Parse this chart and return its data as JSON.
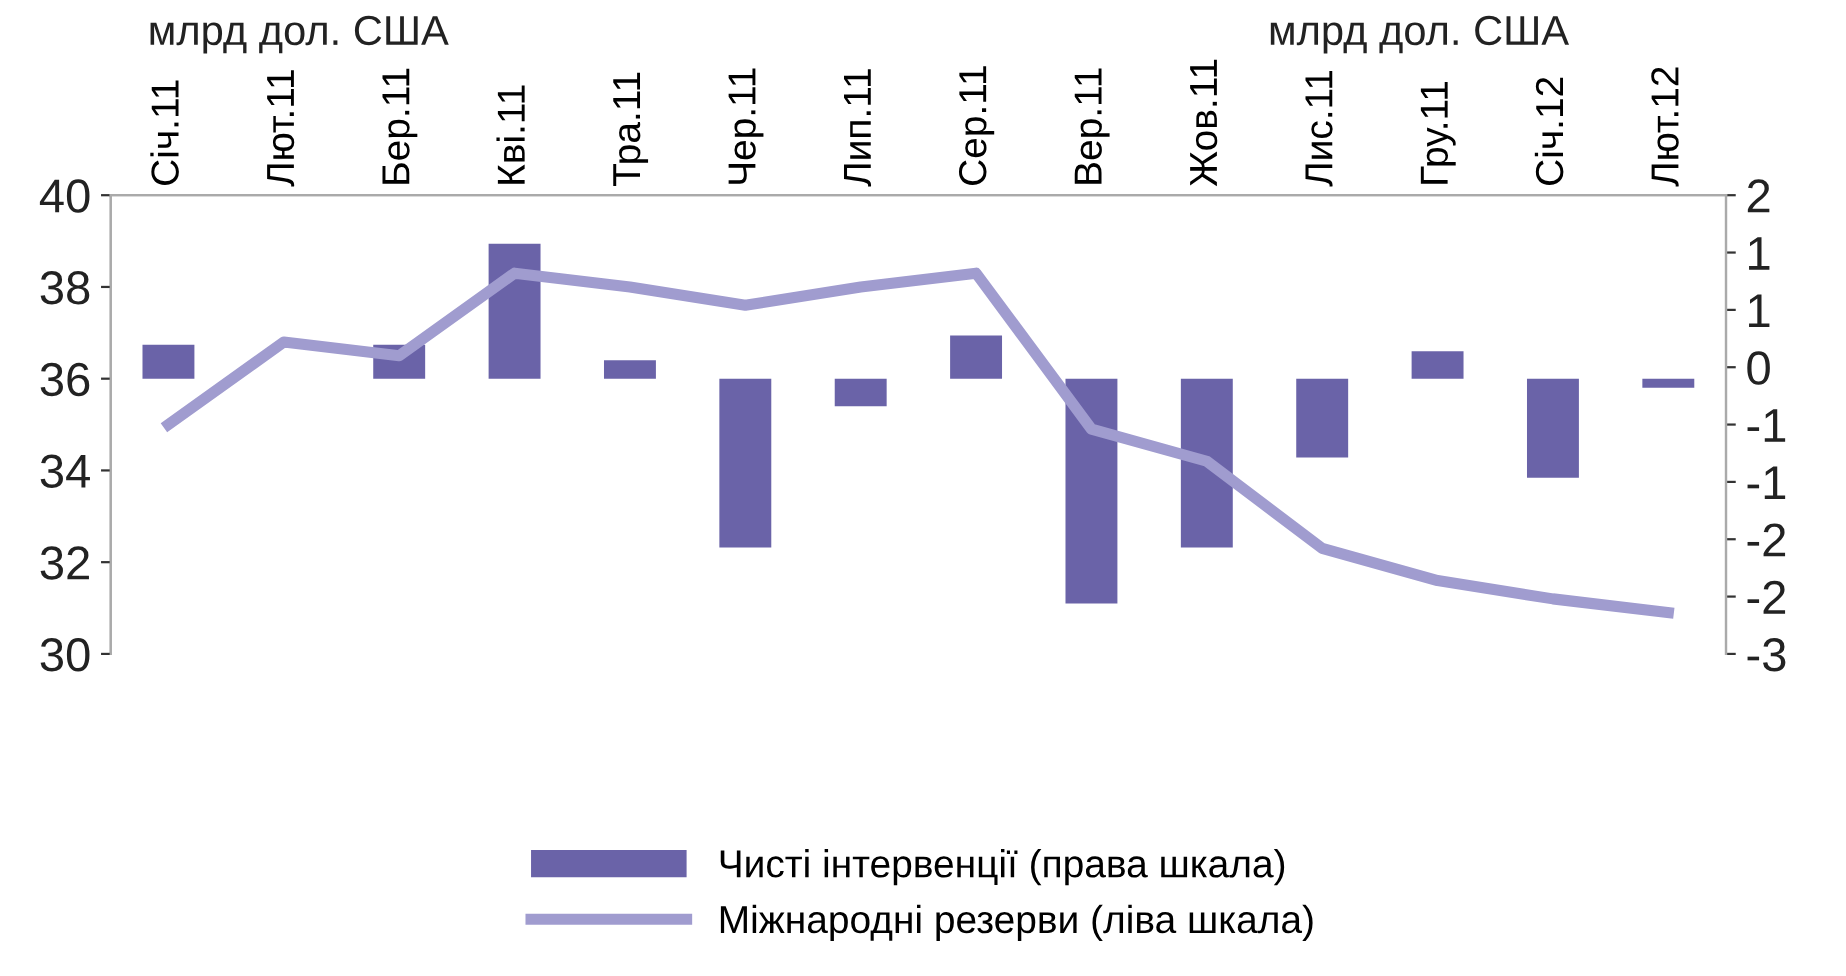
{
  "chart_data": {
    "type": "bar",
    "annotations": [
      "млрд дол. США",
      "млрд дол. США"
    ],
    "categories": [
      "Січ.11",
      "Лют.11",
      "Бер.11",
      "Кві.11",
      "Тра.11",
      "Чер.11",
      "Лип.11",
      "Сер.11",
      "Вер.11",
      "Жов.11",
      "Лис.11",
      "Гру.11",
      "Січ.12",
      "Лют.12"
    ],
    "series": [
      {
        "name": "Чисті інтервенції (права шкала)",
        "axis": "y2",
        "color": "#6a63a8",
        "values": [
          0.37,
          0.0,
          0.37,
          1.47,
          0.2,
          -1.84,
          -0.3,
          0.47,
          -2.45,
          -1.84,
          -0.86,
          0.3,
          -1.08,
          -0.1
        ]
      },
      {
        "name": "Міжнародні резерви (ліва шкала)",
        "type": "line",
        "color": "#a09ccf",
        "values": [
          35.0,
          36.8,
          36.5,
          38.3,
          38.0,
          37.6,
          38.0,
          38.3,
          34.9,
          34.2,
          32.3,
          31.6,
          31.2,
          30.9
        ]
      }
    ],
    "ylim": [
      30,
      40
    ],
    "yticks": [
      30,
      32,
      34,
      36,
      38,
      40
    ],
    "y2lim": [
      -3,
      2
    ],
    "y2ticks": [
      {
        "value": -3,
        "label": "-3"
      },
      {
        "value": -2.375,
        "label": "-2"
      },
      {
        "value": -1.75,
        "label": "-2"
      },
      {
        "value": -1.125,
        "label": "-1"
      },
      {
        "value": -0.5,
        "label": "-1"
      },
      {
        "value": 0.125,
        "label": "0"
      },
      {
        "value": 0.75,
        "label": "1"
      },
      {
        "value": 1.375,
        "label": "1"
      },
      {
        "value": 2,
        "label": "2"
      }
    ],
    "grid": false,
    "legend": "bottom"
  }
}
